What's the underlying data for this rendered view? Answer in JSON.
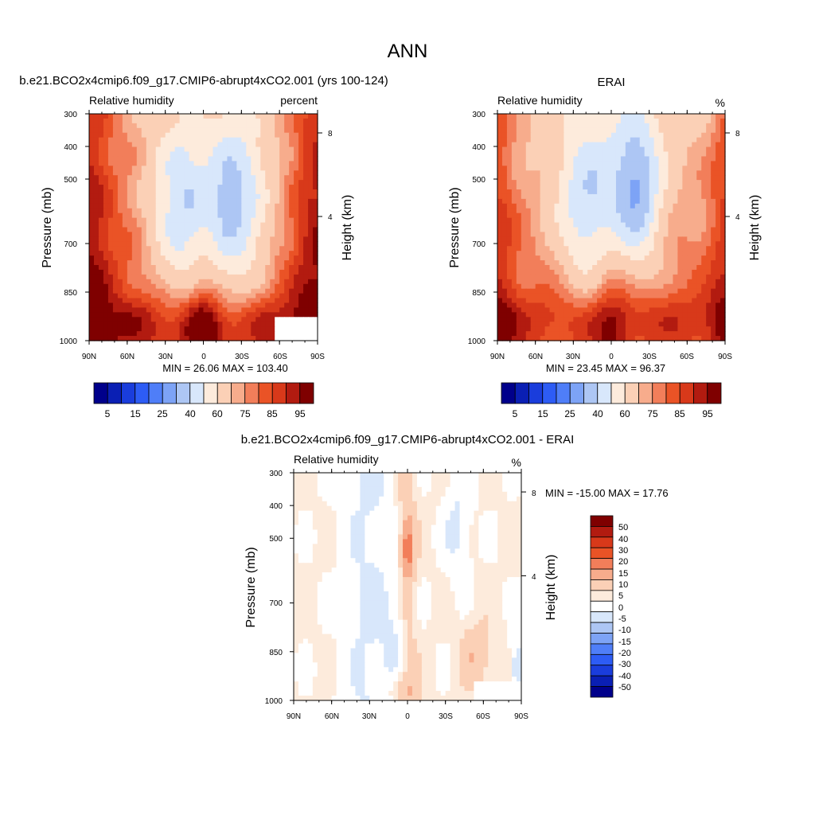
{
  "figure": {
    "title": "ANN"
  },
  "chart_data": [
    {
      "type": "heatmap",
      "title": "b.e21.BCO2x4cmip6.f09_g17.CMIP6-abrupt4xCO2.001 (yrs 100-124)",
      "subtitle_left": "Relative humidity",
      "subtitle_right": "percent",
      "ylabel": "Pressure (mb)",
      "ylabel_right": "Height (km)",
      "x_ticks": [
        "90N",
        "60N",
        "30N",
        "0",
        "30S",
        "60S",
        "90S"
      ],
      "y_ticks": [
        "300",
        "400",
        "500",
        "700",
        "850",
        "1000"
      ],
      "y_right_ticks": [
        "8",
        "4"
      ],
      "stats": "MIN =  26.06  MAX = 103.40",
      "min": 26.06,
      "max": 103.4,
      "colorbar_labels": [
        "5",
        "15",
        "25",
        "40",
        "60",
        "75",
        "85",
        "95"
      ]
    },
    {
      "type": "heatmap",
      "title": "ERAI",
      "subtitle_left": "Relative humidity",
      "subtitle_right": "%",
      "ylabel": "Pressure (mb)",
      "ylabel_right": "Height (km)",
      "x_ticks": [
        "90N",
        "60N",
        "30N",
        "0",
        "30S",
        "60S",
        "90S"
      ],
      "y_ticks": [
        "300",
        "400",
        "500",
        "700",
        "850",
        "1000"
      ],
      "y_right_ticks": [
        "8",
        "4"
      ],
      "stats": "MIN =  23.45  MAX =  96.37",
      "min": 23.45,
      "max": 96.37,
      "colorbar_labels": [
        "5",
        "15",
        "25",
        "40",
        "60",
        "75",
        "85",
        "95"
      ]
    },
    {
      "type": "heatmap",
      "title": "b.e21.BCO2x4cmip6.f09_g17.CMIP6-abrupt4xCO2.001 - ERAI",
      "subtitle_left": "Relative humidity",
      "subtitle_right": "%",
      "ylabel": "Pressure (mb)",
      "ylabel_right": "Height (km)",
      "x_ticks": [
        "90N",
        "60N",
        "30N",
        "0",
        "30S",
        "60S",
        "90S"
      ],
      "y_ticks": [
        "300",
        "400",
        "500",
        "700",
        "850",
        "1000"
      ],
      "y_right_ticks": [
        "8",
        "4"
      ],
      "stats": "MIN = -15.00  MAX =  17.76",
      "min": -15.0,
      "max": 17.76,
      "colorbar_labels": [
        "50",
        "40",
        "30",
        "20",
        "15",
        "10",
        "5",
        "0",
        "-5",
        "-10",
        "-15",
        "-20",
        "-30",
        "-40",
        "-50"
      ]
    }
  ],
  "colors": {
    "abs_scale": [
      "#00008b",
      "#0a1fb4",
      "#1a3ddc",
      "#2d5cf5",
      "#4f7ef8",
      "#7da3f6",
      "#adc6f4",
      "#d8e7fb",
      "#fdebdc",
      "#fbd0b6",
      "#f7ac8c",
      "#f27e5a",
      "#ea5326",
      "#d8391a",
      "#b21b10",
      "#7f0000"
    ],
    "diff_scale": [
      "#7f0000",
      "#b21b10",
      "#d8391a",
      "#ea5326",
      "#f27e5a",
      "#f7ac8c",
      "#fbd0b6",
      "#fdebdc",
      "#ffffff",
      "#d8e7fb",
      "#adc6f4",
      "#7da3f6",
      "#4f7ef8",
      "#2d5cf5",
      "#1a3ddc",
      "#0a1fb4",
      "#00008b"
    ]
  }
}
